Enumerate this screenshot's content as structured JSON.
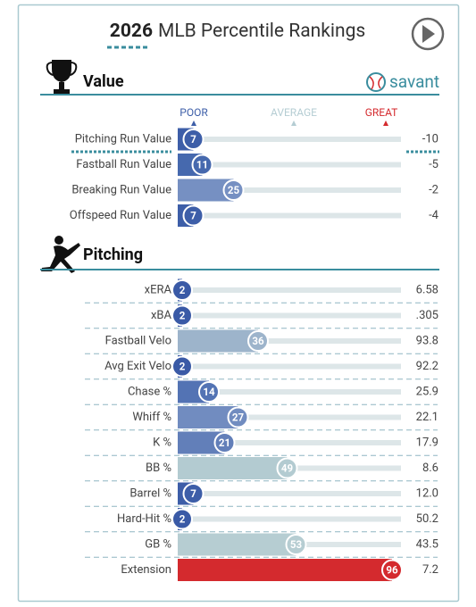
{
  "header": {
    "year": "2026",
    "title": "MLB Percentile Rankings",
    "brand": "savant"
  },
  "scale_labels": [
    "POOR",
    "AVERAGE",
    "GREAT"
  ],
  "chart_data": [
    {
      "type": "bar",
      "orientation": "horizontal",
      "title": "Value",
      "categories": [
        "Pitching Run Value",
        "Fastball Run Value",
        "Breaking Run Value",
        "Offspeed Run Value"
      ],
      "values": [
        7,
        11,
        25,
        7
      ],
      "stats": [
        "-10",
        "-5",
        "-2",
        "-4"
      ],
      "colors": [
        "#3d5ea8",
        "#4669ae",
        "#7690c2",
        "#3d5ea8"
      ],
      "xlim": [
        0,
        100
      ]
    },
    {
      "type": "bar",
      "orientation": "horizontal",
      "title": "Pitching",
      "categories": [
        "xERA",
        "xBA",
        "Fastball Velo",
        "Avg Exit Velo",
        "Chase %",
        "Whiff %",
        "K %",
        "BB %",
        "Barrel %",
        "Hard-Hit %",
        "GB %",
        "Extension"
      ],
      "values": [
        2,
        2,
        36,
        2,
        14,
        27,
        21,
        49,
        7,
        2,
        53,
        96
      ],
      "stats": [
        "6.58",
        ".305",
        "93.8",
        "92.2",
        "25.9",
        "22.1",
        "17.9",
        "8.6",
        "12.0",
        "50.2",
        "43.5",
        "7.2"
      ],
      "colors": [
        "#3a5aa6",
        "#3a5aa6",
        "#9db4cb",
        "#3a5aa6",
        "#5373b4",
        "#718cc0",
        "#627fb9",
        "#b3cbd1",
        "#3d5ea8",
        "#3a5aa6",
        "#b6cdd2",
        "#d42a2e"
      ],
      "xlim": [
        0,
        100
      ]
    }
  ]
}
